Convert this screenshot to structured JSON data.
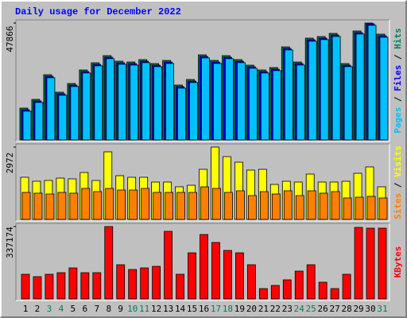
{
  "chart_data": [
    {
      "type": "bar",
      "title": "Daily usage for December 2022",
      "ylim": [
        0,
        47866
      ],
      "yticks": [
        47866
      ],
      "series": [
        {
          "name": "Hits",
          "color": "#00805c",
          "values": [
            13024,
            16605,
            26699,
            19536,
            23117,
            28653,
            31583,
            34513,
            32234,
            31909,
            32885,
            31257,
            32560,
            22466,
            24745,
            34839,
            32560,
            34513,
            32885,
            30606,
            28653,
            29629,
            38095,
            31909,
            41677,
            42328,
            43630,
            31257,
            44607,
            47866,
            43305
          ]
        },
        {
          "name": "Files",
          "color": "#0000ff",
          "values": [
            12373,
            15954,
            26048,
            18885,
            22466,
            28002,
            30932,
            33862,
            31583,
            31258,
            32234,
            30606,
            31909,
            21815,
            24094,
            34188,
            31909,
            33862,
            32234,
            29955,
            28002,
            28978,
            37444,
            31258,
            41026,
            41677,
            42979,
            30606,
            43956,
            47538,
            42654
          ]
        },
        {
          "name": "Pages",
          "color": "#00c0ff",
          "values": [
            11773,
            15354,
            25448,
            18285,
            21866,
            27402,
            30332,
            33262,
            30983,
            30658,
            31634,
            30006,
            31309,
            21215,
            23494,
            33588,
            31309,
            33262,
            31634,
            29355,
            27402,
            28378,
            36844,
            30658,
            40426,
            41077,
            42379,
            30006,
            43356,
            46938,
            42054
          ]
        }
      ]
    },
    {
      "type": "bar",
      "ylim": [
        0,
        2972
      ],
      "yticks": [
        2972
      ],
      "series": [
        {
          "name": "Visits",
          "color": "#ffff00",
          "values": [
            1731,
            1568,
            1600,
            1698,
            1666,
            1927,
            1600,
            2776,
            1796,
            1731,
            1731,
            1535,
            1535,
            1339,
            1404,
            2058,
            2972,
            2580,
            2352,
            2025,
            2058,
            1437,
            1568,
            1535,
            1862,
            1535,
            1535,
            1568,
            1894,
            2156,
            1339
          ]
        },
        {
          "name": "Sites",
          "color": "#ff8000",
          "values": [
            1110,
            1078,
            1045,
            1110,
            1078,
            1274,
            1143,
            1274,
            1208,
            1208,
            1274,
            1110,
            1110,
            1110,
            1110,
            1339,
            1274,
            1110,
            1176,
            980,
            1143,
            1045,
            1176,
            980,
            1176,
            1078,
            1143,
            882,
            914,
            947,
            882
          ]
        }
      ]
    },
    {
      "type": "bar",
      "ylim": [
        0,
        337174
      ],
      "yticks": [
        337174
      ],
      "categories": [
        "1",
        "2",
        "3",
        "4",
        "5",
        "6",
        "7",
        "8",
        "9",
        "10",
        "11",
        "12",
        "13",
        "14",
        "15",
        "16",
        "17",
        "18",
        "19",
        "20",
        "21",
        "22",
        "23",
        "24",
        "25",
        "26",
        "27",
        "28",
        "29",
        "30",
        "31"
      ],
      "category_colors": [
        "#000000",
        "#000000",
        "#00805c",
        "#00805c",
        "#000000",
        "#000000",
        "#000000",
        "#000000",
        "#000000",
        "#00805c",
        "#00805c",
        "#000000",
        "#000000",
        "#000000",
        "#000000",
        "#000000",
        "#00805c",
        "#00805c",
        "#000000",
        "#000000",
        "#000000",
        "#000000",
        "#000000",
        "#00805c",
        "#00805c",
        "#000000",
        "#000000",
        "#000000",
        "#000000",
        "#000000",
        "#00805c"
      ],
      "series": [
        {
          "name": "KBytes",
          "color": "#ff0000",
          "values": [
            114855,
            103740,
            114855,
            122265,
            144495,
            122265,
            122265,
            337174,
            159315,
            137085,
            144495,
            151905,
            314925,
            114855,
            214890,
            300105,
            263055,
            226005,
            214890,
            159315,
            48165,
            62985,
            88920,
            129675,
            159315,
            77805,
            48165,
            114855,
            333450,
            329745,
            329745
          ]
        }
      ]
    }
  ],
  "legend_separator": " / "
}
